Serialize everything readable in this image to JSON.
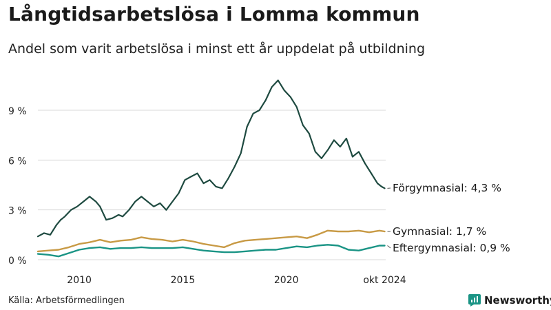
{
  "header": {
    "title": "Långtidsarbetslösa i Lomma kommun",
    "subtitle": "Andel som varit arbetslösa i minst ett år uppdelat på utbildning"
  },
  "footer": {
    "source": "Källa: Arbetsförmedlingen",
    "brand": "Newsworthy"
  },
  "colors": {
    "forgymnasial": "#1e4a40",
    "gymnasial": "#c89a45",
    "eftergymnasial": "#1a9485",
    "grid": "#d9d9d9",
    "brand": "#1a9485"
  },
  "icons": {
    "brand_logo": "newsworthy-logo-icon"
  },
  "chart_data": {
    "type": "line",
    "title": "Långtidsarbetslösa i Lomma kommun",
    "subtitle": "Andel som varit arbetslösa i minst ett år uppdelat på utbildning",
    "xlabel": "",
    "ylabel": "",
    "xlim": [
      2008.0,
      2024.8
    ],
    "ylim": [
      0,
      11.5
    ],
    "grid": true,
    "x_ticks": [
      {
        "value": 2010,
        "label": "2010"
      },
      {
        "value": 2015,
        "label": "2015"
      },
      {
        "value": 2020,
        "label": "2020"
      },
      {
        "value": 2024.75,
        "label": "okt 2024"
      }
    ],
    "y_ticks": [
      {
        "value": 0,
        "label": "0 %"
      },
      {
        "value": 3,
        "label": "3 %"
      },
      {
        "value": 6,
        "label": "6 %"
      },
      {
        "value": 9,
        "label": "9 %"
      }
    ],
    "series": [
      {
        "name": "Förgymnasial",
        "end_label": "Förgymnasial: 4,3 %",
        "color_key": "forgymnasial",
        "x": [
          2008.0,
          2008.3,
          2008.6,
          2008.9,
          2009.1,
          2009.3,
          2009.6,
          2009.9,
          2010.2,
          2010.5,
          2010.8,
          2011.0,
          2011.3,
          2011.6,
          2011.9,
          2012.1,
          2012.4,
          2012.7,
          2013.0,
          2013.3,
          2013.6,
          2013.9,
          2014.2,
          2014.5,
          2014.8,
          2015.1,
          2015.4,
          2015.7,
          2016.0,
          2016.3,
          2016.6,
          2016.9,
          2017.2,
          2017.5,
          2017.8,
          2018.1,
          2018.4,
          2018.7,
          2019.0,
          2019.3,
          2019.6,
          2019.9,
          2020.2,
          2020.5,
          2020.8,
          2021.1,
          2021.4,
          2021.7,
          2022.0,
          2022.3,
          2022.6,
          2022.9,
          2023.2,
          2023.5,
          2023.8,
          2024.1,
          2024.4,
          2024.6,
          2024.75
        ],
        "values": [
          1.4,
          1.6,
          1.5,
          2.1,
          2.4,
          2.6,
          3.0,
          3.2,
          3.5,
          3.8,
          3.5,
          3.2,
          2.4,
          2.5,
          2.7,
          2.6,
          3.0,
          3.5,
          3.8,
          3.5,
          3.2,
          3.4,
          3.0,
          3.5,
          4.0,
          4.8,
          5.0,
          5.2,
          4.6,
          4.8,
          4.4,
          4.3,
          4.9,
          5.6,
          6.4,
          8.0,
          8.8,
          9.0,
          9.6,
          10.4,
          10.8,
          10.2,
          9.8,
          9.2,
          8.1,
          7.6,
          6.5,
          6.1,
          6.6,
          7.2,
          6.8,
          7.3,
          6.2,
          6.5,
          5.8,
          5.2,
          4.6,
          4.4,
          4.3
        ]
      },
      {
        "name": "Gymnasial",
        "end_label": "Gymnasial: 1,7 %",
        "color_key": "gymnasial",
        "x": [
          2008.0,
          2008.5,
          2009.0,
          2009.5,
          2010.0,
          2010.5,
          2011.0,
          2011.5,
          2012.0,
          2012.5,
          2013.0,
          2013.5,
          2014.0,
          2014.5,
          2015.0,
          2015.5,
          2016.0,
          2016.5,
          2017.0,
          2017.5,
          2018.0,
          2018.5,
          2019.0,
          2019.5,
          2020.0,
          2020.5,
          2021.0,
          2021.5,
          2022.0,
          2022.5,
          2023.0,
          2023.5,
          2024.0,
          2024.5,
          2024.75
        ],
        "values": [
          0.5,
          0.55,
          0.6,
          0.75,
          0.95,
          1.05,
          1.2,
          1.05,
          1.15,
          1.2,
          1.35,
          1.25,
          1.2,
          1.1,
          1.2,
          1.1,
          0.95,
          0.85,
          0.75,
          1.0,
          1.15,
          1.2,
          1.25,
          1.3,
          1.35,
          1.4,
          1.3,
          1.5,
          1.75,
          1.7,
          1.7,
          1.75,
          1.65,
          1.75,
          1.7
        ]
      },
      {
        "name": "Eftergymnasial",
        "end_label": "Eftergymnasial: 0,9 %",
        "color_key": "eftergymnasial",
        "x": [
          2008.0,
          2008.5,
          2009.0,
          2009.5,
          2010.0,
          2010.5,
          2011.0,
          2011.5,
          2012.0,
          2012.5,
          2013.0,
          2013.5,
          2014.0,
          2014.5,
          2015.0,
          2015.5,
          2016.0,
          2016.5,
          2017.0,
          2017.5,
          2018.0,
          2018.5,
          2019.0,
          2019.5,
          2020.0,
          2020.5,
          2021.0,
          2021.5,
          2022.0,
          2022.5,
          2023.0,
          2023.5,
          2024.0,
          2024.5,
          2024.75
        ],
        "values": [
          0.35,
          0.3,
          0.2,
          0.4,
          0.6,
          0.7,
          0.75,
          0.65,
          0.7,
          0.7,
          0.75,
          0.7,
          0.7,
          0.7,
          0.75,
          0.65,
          0.55,
          0.5,
          0.45,
          0.45,
          0.5,
          0.55,
          0.6,
          0.6,
          0.7,
          0.8,
          0.75,
          0.85,
          0.9,
          0.85,
          0.6,
          0.55,
          0.7,
          0.85,
          0.85
        ]
      }
    ]
  }
}
